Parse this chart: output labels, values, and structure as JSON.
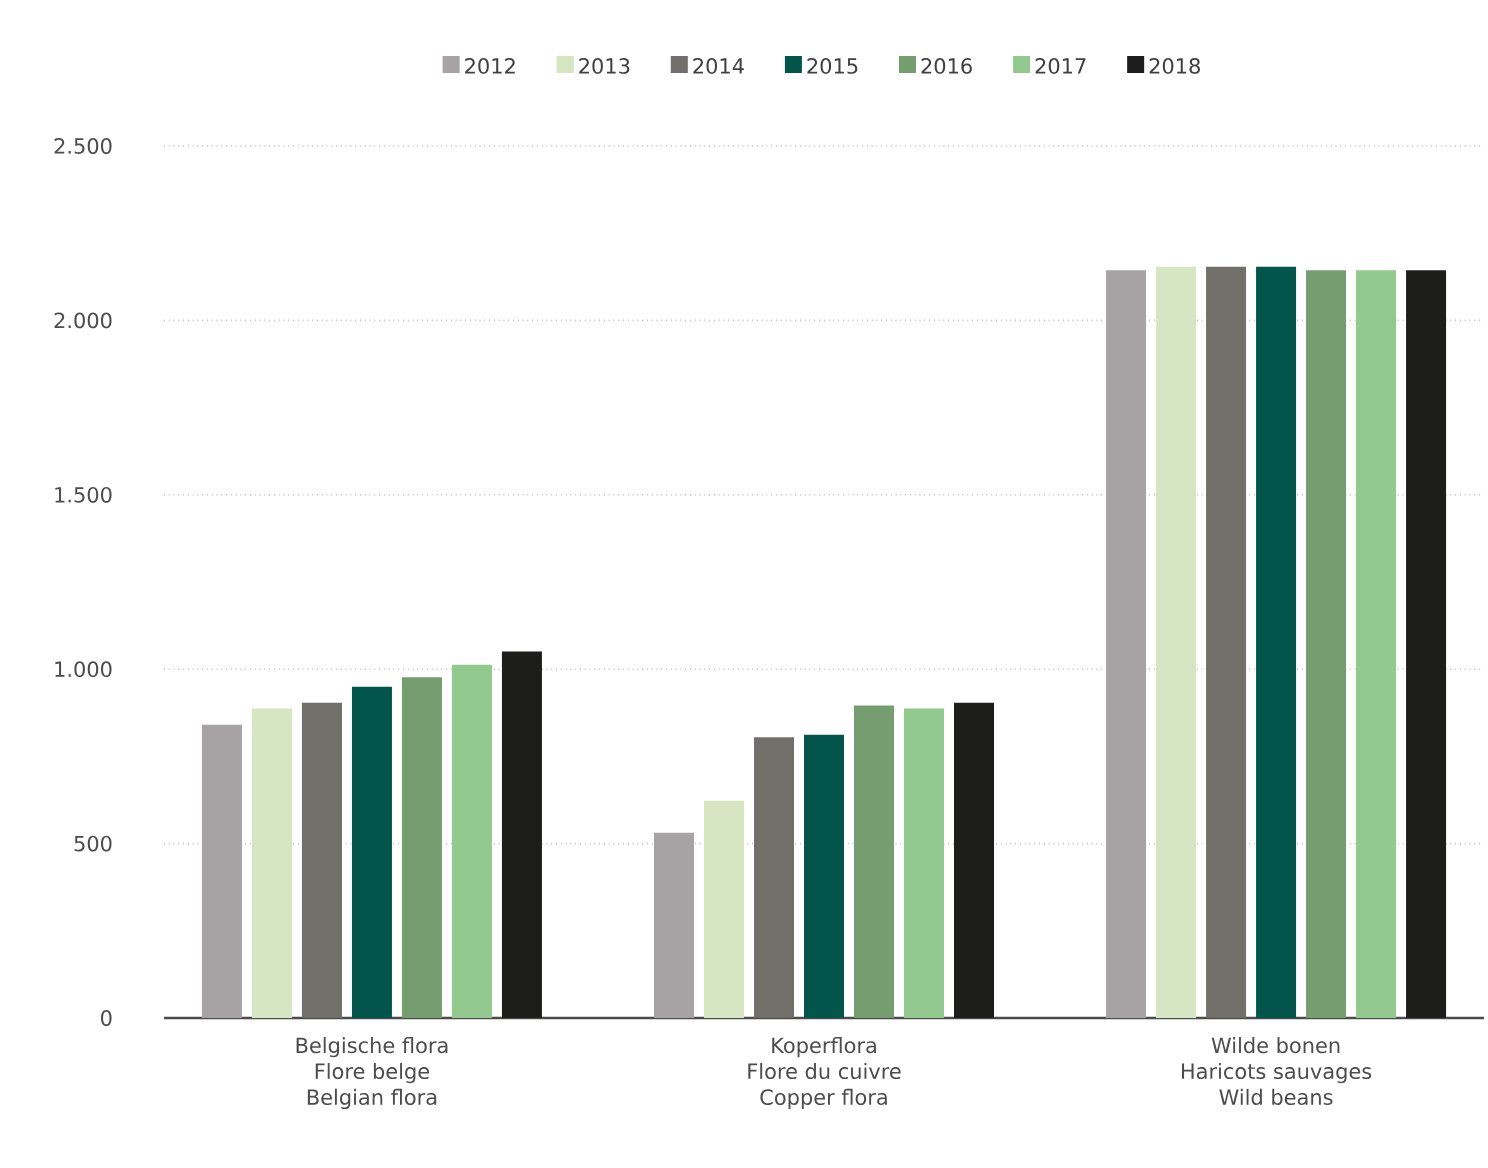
{
  "chart_data": {
    "type": "bar",
    "categories": [
      "Belgische flora\nFlore belge\nBelgian flora",
      "Koperflora\nFlore du cuivre\nCopper flora",
      "Wilde bonen\nHaricots sauvages\nWild beans"
    ],
    "series": [
      {
        "name": "2012",
        "color": "#a7a2a4",
        "values": [
          841,
          531,
          2144
        ]
      },
      {
        "name": "2013",
        "color": "#d6e6c3",
        "values": [
          887,
          623,
          2154
        ]
      },
      {
        "name": "2014",
        "color": "#706f6a",
        "values": [
          904,
          805,
          2154
        ]
      },
      {
        "name": "2015",
        "color": "#03544a",
        "values": [
          950,
          812,
          2154
        ]
      },
      {
        "name": "2016",
        "color": "#759d70",
        "values": [
          977,
          896,
          2144
        ]
      },
      {
        "name": "2017",
        "color": "#93c88e",
        "values": [
          1013,
          887,
          2144
        ]
      },
      {
        "name": "2018",
        "color": "#1d1d1b",
        "values": [
          1051,
          904,
          2144
        ]
      }
    ],
    "ylim": [
      0,
      2500
    ],
    "yticks": [
      {
        "value": 0,
        "label": "0"
      },
      {
        "value": 500,
        "label": "500"
      },
      {
        "value": 1000,
        "label": "1.000"
      },
      {
        "value": 1500,
        "label": "1.500"
      },
      {
        "value": 2000,
        "label": "2.000"
      },
      {
        "value": 2500,
        "label": "2.500"
      }
    ],
    "grid": "y",
    "legend": "top"
  }
}
